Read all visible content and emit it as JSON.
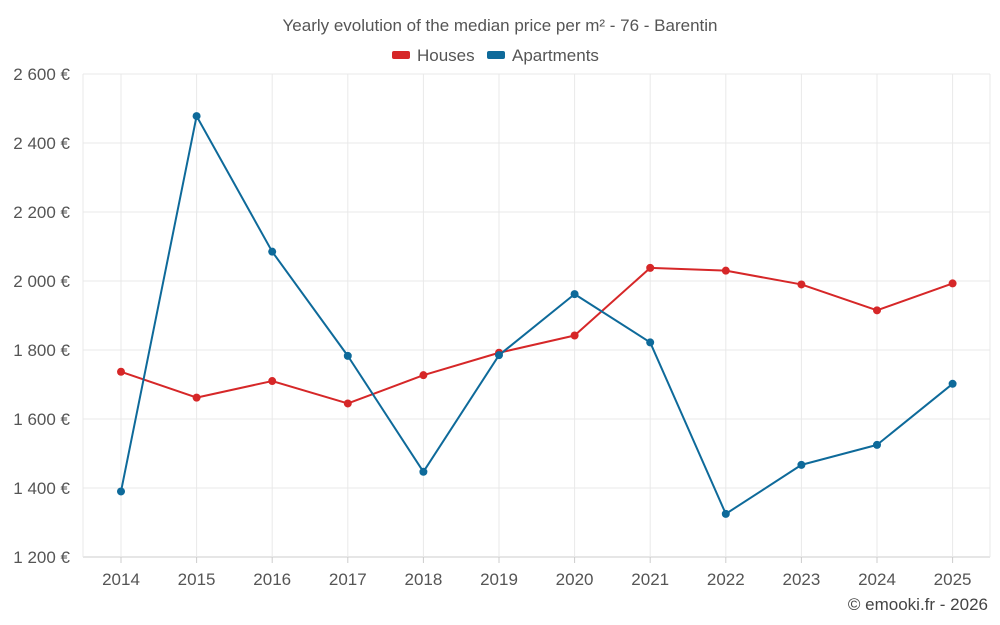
{
  "chart_data": {
    "type": "line",
    "title": "Yearly evolution of the median price per m² - 76 - Barentin",
    "categories": [
      "2014",
      "2015",
      "2016",
      "2017",
      "2018",
      "2019",
      "2020",
      "2021",
      "2022",
      "2023",
      "2024",
      "2025"
    ],
    "series": [
      {
        "name": "Houses",
        "color": "#d62728",
        "values": [
          1737,
          1662,
          1710,
          1645,
          1727,
          1792,
          1842,
          2038,
          2030,
          1990,
          1915,
          1993
        ]
      },
      {
        "name": "Apartments",
        "color": "#0e6a9a",
        "values": [
          1390,
          2478,
          2085,
          1783,
          1447,
          1785,
          1962,
          1822,
          1325,
          1467,
          1525,
          1702
        ]
      }
    ],
    "ylim": [
      1200,
      2600
    ],
    "yticks": [
      1200,
      1400,
      1600,
      1800,
      2000,
      2200,
      2400,
      2600
    ],
    "ytick_labels": [
      "1 200 €",
      "1 400 €",
      "1 600 €",
      "1 800 €",
      "2 000 €",
      "2 200 €",
      "2 400 €",
      "2 600 €"
    ],
    "legend_position": "top-center",
    "grid": true,
    "xlabel": "",
    "ylabel": ""
  },
  "credit": "© emooki.fr - 2026"
}
